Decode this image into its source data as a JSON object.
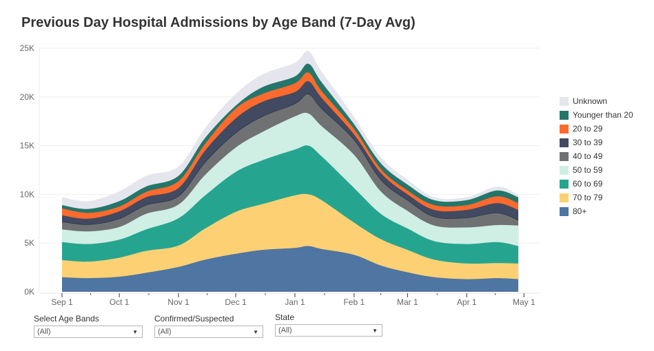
{
  "title": "Previous Day Hospital Admissions by Age Band (7-Day Avg)",
  "legend": [
    {
      "name": "Unknown",
      "color": "#e4e5ed"
    },
    {
      "name": "Younger than 20",
      "color": "#24766a"
    },
    {
      "name": "20 to 29",
      "color": "#fd6a2d"
    },
    {
      "name": "30 to 39",
      "color": "#414a60"
    },
    {
      "name": "40 to 49",
      "color": "#6f7173"
    },
    {
      "name": "50 to 59",
      "color": "#cfeee4"
    },
    {
      "name": "60 to 69",
      "color": "#25a590"
    },
    {
      "name": "70 to 79",
      "color": "#fdd173"
    },
    {
      "name": "80+",
      "color": "#4f75a2"
    }
  ],
  "filters": [
    {
      "label": "Select Age Bands",
      "value": "(All)"
    },
    {
      "label": "Confirmed/Suspected",
      "value": "(All)"
    },
    {
      "label": "State",
      "value": "(All)"
    }
  ],
  "chart_data": {
    "type": "area",
    "stacked": true,
    "title": "Previous Day Hospital Admissions by Age Band (7-Day Avg)",
    "xlabel": "",
    "ylabel": "",
    "ylim": [
      0,
      25000
    ],
    "yticks": [
      0,
      5000,
      10000,
      15000,
      20000,
      25000
    ],
    "ytick_labels": [
      "0K",
      "5K",
      "10K",
      "15K",
      "20K",
      "25K"
    ],
    "xtick_labels": [
      "Sep 1",
      "Oct 1",
      "Nov 1",
      "Dec 1",
      "Jan 1",
      "Feb 1",
      "Mar 1",
      "Apr 1",
      "May 1"
    ],
    "grid": true,
    "legend_position": "right",
    "x": [
      "Sep 1",
      "Sep 15",
      "Oct 1",
      "Oct 15",
      "Nov 1",
      "Nov 15",
      "Dec 1",
      "Dec 15",
      "Jan 1",
      "Jan 8",
      "Jan 15",
      "Feb 1",
      "Feb 15",
      "Mar 1",
      "Mar 15",
      "Apr 1",
      "Apr 17",
      "Apr 28"
    ],
    "x_days": [
      0,
      14,
      30,
      44,
      61,
      75,
      91,
      105,
      122,
      129,
      136,
      153,
      167,
      181,
      195,
      212,
      228,
      239
    ],
    "series": [
      {
        "name": "80+",
        "values": [
          1500,
          1400,
          1550,
          1950,
          2550,
          3300,
          3900,
          4300,
          4500,
          4700,
          4400,
          3800,
          2700,
          2000,
          1500,
          1300,
          1400,
          1300
        ]
      },
      {
        "name": "70 to 79",
        "values": [
          1750,
          1700,
          1950,
          2250,
          2200,
          3200,
          4300,
          4700,
          5400,
          5300,
          5000,
          3300,
          2700,
          2300,
          1800,
          1600,
          1550,
          1600
        ]
      },
      {
        "name": "60 to 69",
        "values": [
          1850,
          1800,
          1850,
          2200,
          2800,
          3400,
          4100,
          4500,
          4700,
          5000,
          4500,
          3550,
          2600,
          2200,
          1900,
          2000,
          2150,
          1800
        ]
      },
      {
        "name": "50 to 59",
        "values": [
          1300,
          1300,
          1300,
          1600,
          1400,
          2100,
          2500,
          2900,
          3400,
          3300,
          3100,
          3400,
          2300,
          1800,
          1600,
          1700,
          1750,
          2100
        ]
      },
      {
        "name": "40 to 49",
        "values": [
          800,
          700,
          850,
          900,
          850,
          1300,
          1500,
          1600,
          1300,
          2000,
          1800,
          1550,
          1200,
          1100,
          900,
          1000,
          1250,
          550
        ]
      },
      {
        "name": "30 to 39",
        "values": [
          650,
          600,
          750,
          800,
          850,
          1200,
          1500,
          1500,
          1200,
          1300,
          1100,
          550,
          700,
          600,
          700,
          800,
          1000,
          1050
        ]
      },
      {
        "name": "20 to 29",
        "values": [
          700,
          600,
          500,
          550,
          700,
          700,
          1000,
          800,
          900,
          900,
          700,
          550,
          400,
          400,
          500,
          500,
          700,
          700
        ]
      },
      {
        "name": "Younger than 20",
        "values": [
          350,
          400,
          550,
          550,
          550,
          600,
          300,
          700,
          700,
          900,
          900,
          500,
          600,
          600,
          500,
          500,
          600,
          600
        ]
      },
      {
        "name": "Unknown",
        "values": [
          800,
          800,
          1000,
          1100,
          950,
          1000,
          1200,
          1300,
          1400,
          1300,
          1100,
          750,
          600,
          500,
          300,
          300,
          400,
          250
        ]
      }
    ]
  }
}
